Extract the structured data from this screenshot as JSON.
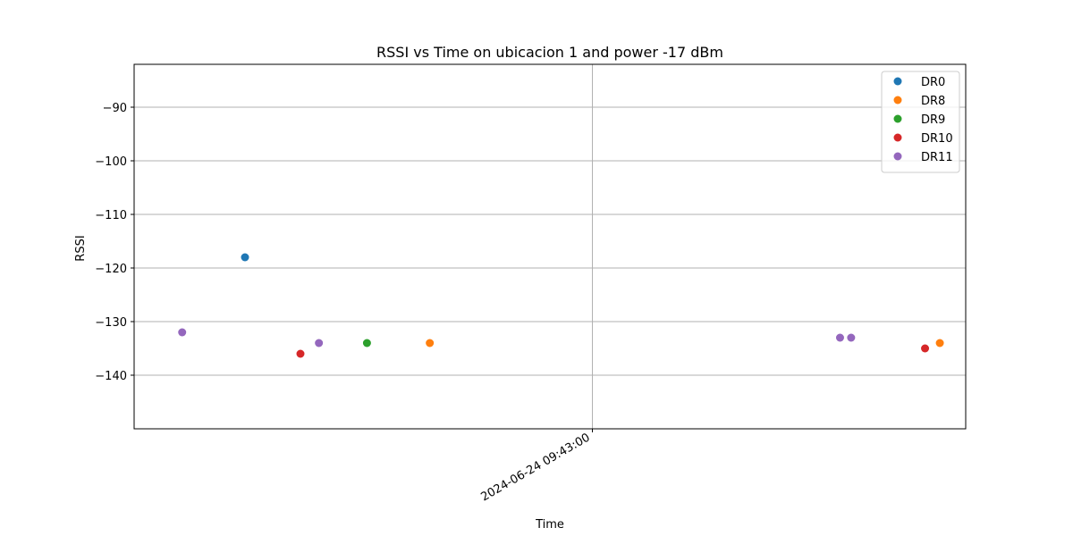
{
  "chart_data": {
    "type": "scatter",
    "title": "RSSI vs Time on ubicacion 1 and power -17 dBm",
    "xlabel": "Time",
    "ylabel": "RSSI",
    "x_ticks": [
      {
        "label": "2024-06-24 09:43:00",
        "value": "2024-06-24T09:43:00"
      }
    ],
    "x_range": [
      "2024-06-24T09:40:56",
      "2024-06-24T09:44:41"
    ],
    "y_ticks": [
      -90,
      -100,
      -110,
      -120,
      -130,
      -140
    ],
    "ylim": [
      -150,
      -82
    ],
    "grid": true,
    "legend_position": "top-right",
    "series": [
      {
        "name": "DR0",
        "color": "#1f77b4",
        "points": [
          {
            "x": "2024-06-24T09:41:26",
            "y": -118
          }
        ]
      },
      {
        "name": "DR8",
        "color": "#ff7f0e",
        "points": [
          {
            "x": "2024-06-24T09:42:16",
            "y": -134
          },
          {
            "x": "2024-06-24T09:44:34",
            "y": -134
          }
        ]
      },
      {
        "name": "DR9",
        "color": "#2ca02c",
        "points": [
          {
            "x": "2024-06-24T09:41:59",
            "y": -134
          }
        ]
      },
      {
        "name": "DR10",
        "color": "#d62728",
        "points": [
          {
            "x": "2024-06-24T09:41:41",
            "y": -136
          },
          {
            "x": "2024-06-24T09:44:30",
            "y": -135
          }
        ]
      },
      {
        "name": "DR11",
        "color": "#9467bd",
        "points": [
          {
            "x": "2024-06-24T09:41:09",
            "y": -132
          },
          {
            "x": "2024-06-24T09:41:46",
            "y": -134
          },
          {
            "x": "2024-06-24T09:44:07",
            "y": -133
          },
          {
            "x": "2024-06-24T09:44:10",
            "y": -133
          }
        ]
      }
    ]
  }
}
